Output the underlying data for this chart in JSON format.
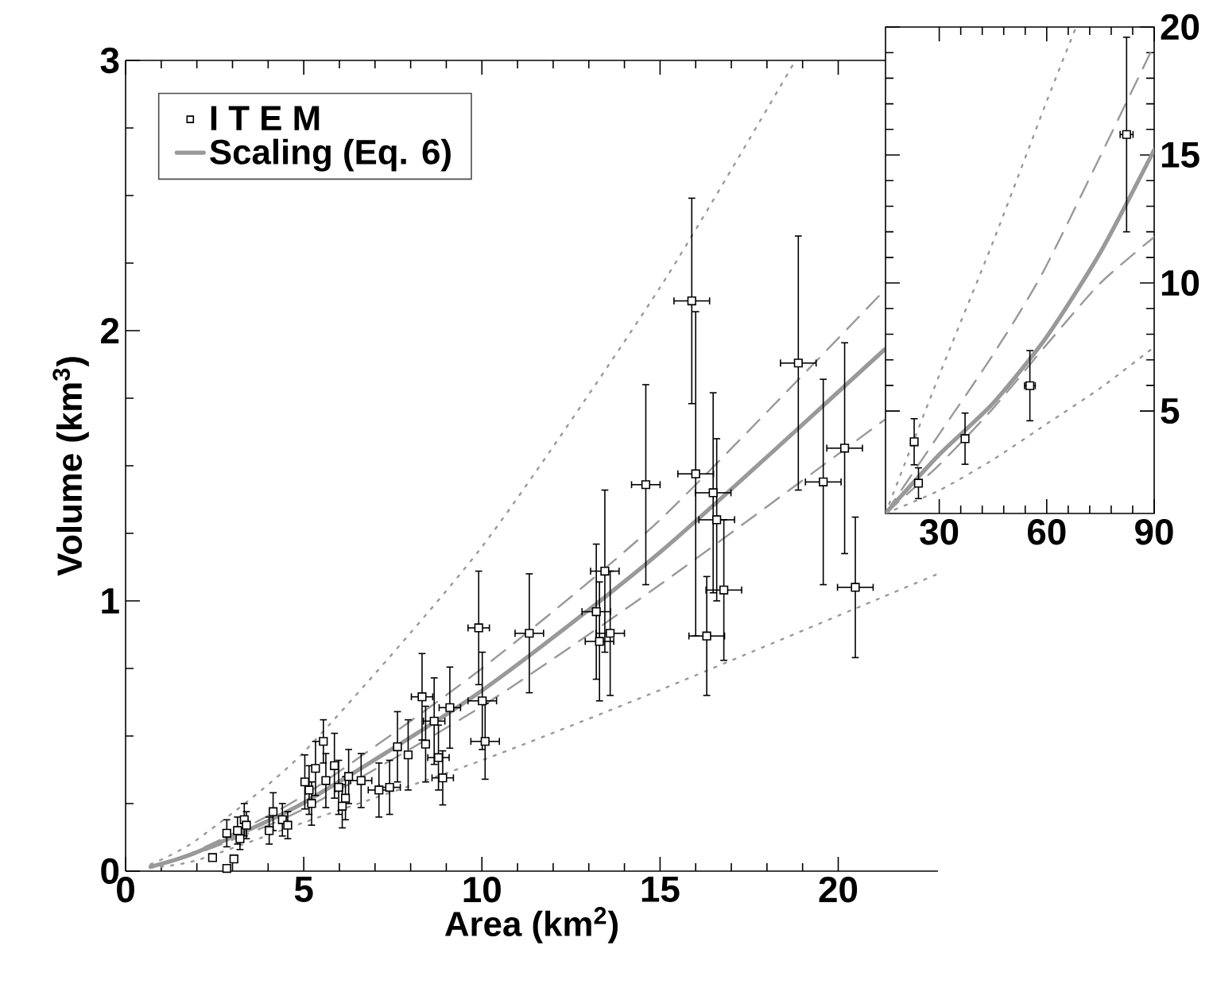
{
  "chart_data": [
    {
      "type": "scatter",
      "xlabel": "Area (km$^{2}$)",
      "ylabel": "Volume (km$^{3}$)",
      "xlim": [
        0,
        22.8
      ],
      "ylim": [
        0,
        3
      ],
      "xticks": [
        0,
        5,
        10,
        15,
        20
      ],
      "yticks": [
        0,
        1,
        2,
        3
      ],
      "grid": false,
      "legend": "top left",
      "series": [
        {
          "type": "line",
          "color": "#999999",
          "line_style": "dotted",
          "x": [
            0.7,
            2,
            5,
            10,
            15,
            18.8
          ],
          "values": [
            0.025,
            0.116,
            0.44,
            1.2,
            2.16,
            3.0
          ]
        },
        {
          "type": "line",
          "color": "#999999",
          "line_style": "dotted",
          "x": [
            0.7,
            2,
            5,
            10,
            15,
            22.8
          ],
          "values": [
            0.012,
            0.04,
            0.18,
            0.41,
            0.67,
            1.1
          ]
        },
        {
          "type": "line",
          "color": "#999999",
          "line_style": "dashed",
          "x": [
            0.7,
            2,
            5,
            10,
            15,
            21.3
          ],
          "values": [
            0.016,
            0.075,
            0.28,
            0.75,
            1.3,
            2.15
          ]
        },
        {
          "type": "line",
          "color": "#999999",
          "line_style": "dashed",
          "x": [
            0.7,
            2,
            5,
            10,
            15,
            21.3
          ],
          "values": [
            0.016,
            0.065,
            0.23,
            0.61,
            1.06,
            1.67
          ]
        },
        {
          "type": "line",
          "name": "Scaling (Eq. 6)",
          "color": "#999999",
          "line_style": "solid",
          "x": [
            0.7,
            2,
            5,
            10,
            15,
            21.3
          ],
          "values": [
            0.016,
            0.07,
            0.253,
            0.668,
            1.18,
            1.93
          ]
        },
        {
          "name": "I T E M",
          "color": "#000000",
          "marker": "square",
          "x": [
            2.44,
            2.84,
            3.04,
            2.84,
            3.14,
            3.33,
            3.39,
            3.21,
            4.03,
            4.14,
            4.4,
            4.55,
            5.03,
            5.15,
            5.22,
            5.33,
            5.55,
            5.62,
            5.86,
            5.98,
            6.08,
            6.17,
            6.26,
            6.61,
            7.11,
            7.41,
            7.63,
            7.93,
            8.32,
            8.42,
            8.66,
            8.78,
            8.9,
            9.1,
            9.91,
            10.01,
            10.09,
            11.33,
            13.21,
            13.45,
            13.6,
            13.3,
            14.6,
            15.89,
            16.0,
            16.49,
            16.59,
            16.79,
            16.31,
            18.88,
            19.58,
            20.18,
            20.48
          ],
          "values": [
            0.05,
            0.01,
            0.045,
            0.14,
            0.15,
            0.19,
            0.17,
            0.12,
            0.15,
            0.22,
            0.19,
            0.17,
            0.33,
            0.3,
            0.25,
            0.38,
            0.48,
            0.335,
            0.39,
            0.31,
            0.24,
            0.27,
            0.35,
            0.335,
            0.3,
            0.31,
            0.46,
            0.43,
            0.645,
            0.47,
            0.555,
            0.42,
            0.345,
            0.605,
            0.9,
            0.63,
            0.48,
            0.88,
            0.96,
            1.11,
            0.88,
            0.85,
            1.43,
            2.11,
            1.47,
            1.4,
            1.3,
            1.04,
            0.87,
            1.88,
            1.44,
            1.565,
            1.05
          ],
          "errors": [
            null,
            null,
            null,
            0.05,
            0.05,
            0.06,
            0.05,
            0.04,
            0.05,
            0.07,
            0.06,
            0.05,
            0.1,
            0.09,
            0.08,
            0.1,
            0.08,
            0.1,
            0.12,
            0.1,
            0.08,
            0.08,
            0.1,
            0.1,
            0.1,
            0.1,
            0.13,
            0.13,
            0.16,
            0.14,
            0.16,
            0.12,
            0.1,
            0.15,
            0.21,
            0.18,
            0.14,
            0.22,
            0.25,
            0.3,
            0.23,
            0.22,
            0.37,
            0.38,
            0.6,
            0.37,
            0.3,
            0.26,
            0.22,
            0.47,
            0.38,
            0.39,
            0.26
          ],
          "xerrors": [
            null,
            null,
            null,
            null,
            null,
            null,
            null,
            null,
            null,
            null,
            null,
            null,
            null,
            null,
            null,
            null,
            null,
            null,
            null,
            null,
            null,
            null,
            null,
            0.3,
            0.3,
            0.3,
            null,
            null,
            0.3,
            null,
            0.3,
            0.3,
            0.3,
            0.3,
            0.3,
            0.4,
            0.4,
            0.4,
            0.4,
            0.4,
            0.4,
            0.4,
            0.4,
            0.5,
            0.5,
            0.5,
            0.5,
            0.5,
            0.5,
            0.5,
            0.5,
            0.5,
            0.5
          ]
        }
      ]
    },
    {
      "type": "scatter",
      "xlim": [
        15,
        90
      ],
      "y2lim": [
        1,
        20
      ],
      "xticks": [
        30,
        60,
        90
      ],
      "y2ticks": [
        5,
        10,
        15,
        20
      ],
      "grid": false,
      "series": [
        {
          "type": "line",
          "axis": "y2",
          "color": "#999999",
          "line_style": "dotted",
          "x": [
            15,
            30,
            45,
            60,
            68.2
          ],
          "values": [
            1,
            6.4,
            11.6,
            17.1,
            20
          ]
        },
        {
          "type": "line",
          "axis": "y2",
          "color": "#999999",
          "line_style": "dotted",
          "x": [
            15,
            30,
            45,
            60,
            75,
            90
          ],
          "values": [
            1,
            1.9,
            3.1,
            4.5,
            5.9,
            7.5
          ]
        },
        {
          "type": "line",
          "axis": "y2",
          "color": "#999999",
          "line_style": "dashed",
          "x": [
            15,
            30,
            45,
            60,
            90
          ],
          "values": [
            1,
            4.1,
            7.2,
            10.7,
            19.3
          ]
        },
        {
          "type": "line",
          "axis": "y2",
          "color": "#999999",
          "line_style": "dashed",
          "x": [
            15,
            30,
            45,
            60,
            75,
            90
          ],
          "values": [
            1,
            2.9,
            5.1,
            7.6,
            10,
            11.8
          ]
        },
        {
          "type": "line",
          "axis": "y2",
          "color": "#999999",
          "line_style": "solid",
          "x": [
            15,
            30,
            45,
            60,
            75,
            90
          ],
          "values": [
            1,
            3.3,
            5.3,
            7.9,
            11.2,
            15.2
          ]
        },
        {
          "axis": "y2",
          "color": "#000000",
          "marker": "square",
          "x": [
            23.0,
            24.2,
            37.2,
            55.3,
            82.3
          ],
          "values": [
            3.8,
            2.18,
            3.92,
            5.99,
            15.8
          ],
          "errors": [
            0.9,
            0.6,
            1.0,
            1.37,
            3.8
          ],
          "xerrors": [
            0.8,
            0.8,
            0.8,
            1.5,
            1.8
          ]
        }
      ]
    }
  ]
}
